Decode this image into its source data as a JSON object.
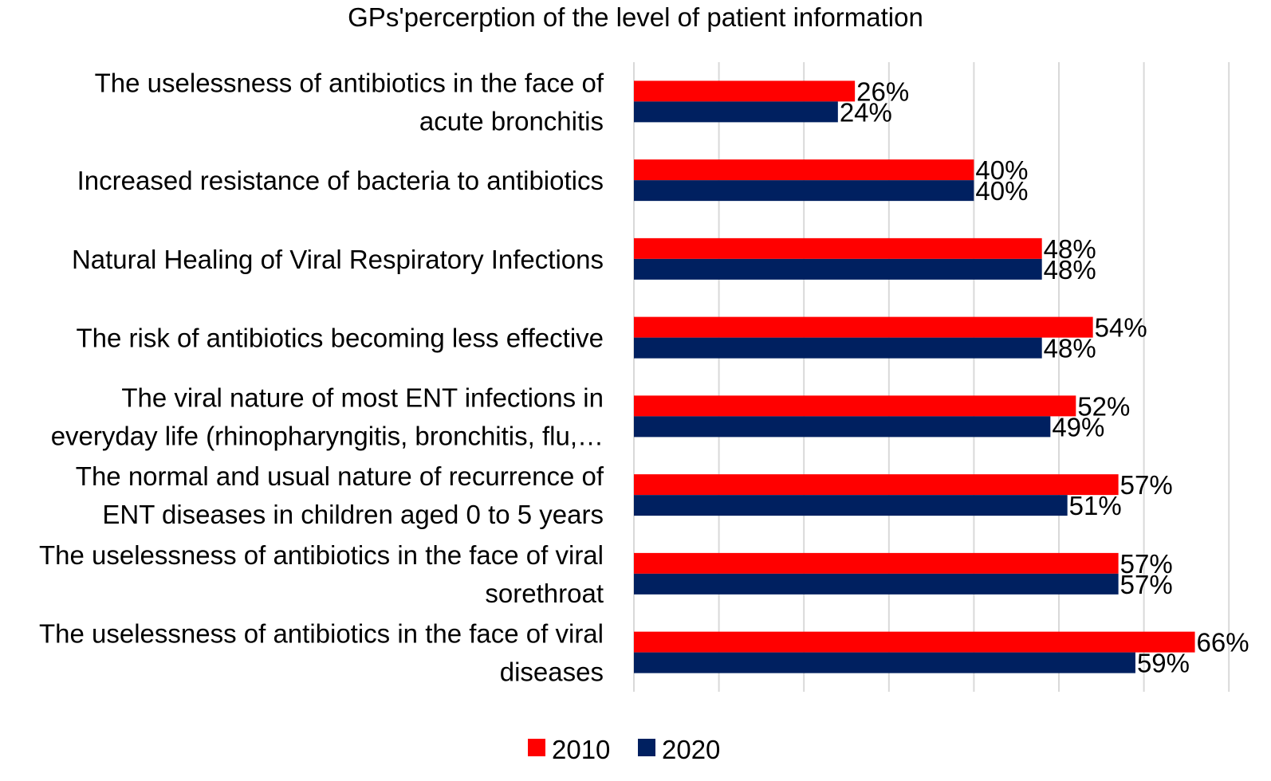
{
  "chart_data": {
    "type": "bar",
    "orientation": "horizontal",
    "title": "GPs'percerption of the level of patient information",
    "categories": [
      [
        "The uselessness of antibiotics in the face of",
        "acute bronchitis"
      ],
      [
        "Increased resistance of bacteria to antibiotics"
      ],
      [
        "Natural Healing of Viral Respiratory Infections"
      ],
      [
        "The risk of antibiotics becoming less effective"
      ],
      [
        "The viral nature of most ENT infections in",
        "everyday life (rhinopharyngitis, bronchitis, flu,…"
      ],
      [
        "The normal and usual nature of recurrence of",
        "ENT diseases in children aged 0 to 5 years"
      ],
      [
        "The uselessness of antibiotics in the face of viral",
        "sorethroat"
      ],
      [
        "The uselessness of antibiotics in the face of viral",
        "diseases"
      ]
    ],
    "series": [
      {
        "name": "2010",
        "color": "#ff0000",
        "values": [
          26,
          40,
          48,
          54,
          52,
          57,
          57,
          66
        ]
      },
      {
        "name": "2020",
        "color": "#002060",
        "values": [
          24,
          40,
          48,
          48,
          49,
          51,
          57,
          59
        ]
      }
    ],
    "value_labels": [
      [
        "26%",
        "40%",
        "48%",
        "54%",
        "52%",
        "57%",
        "57%",
        "66%"
      ],
      [
        "24%",
        "40%",
        "48%",
        "48%",
        "49%",
        "51%",
        "57%",
        "59%"
      ]
    ],
    "xlim": [
      0,
      70
    ],
    "grid": true,
    "legend_position": "bottom"
  }
}
